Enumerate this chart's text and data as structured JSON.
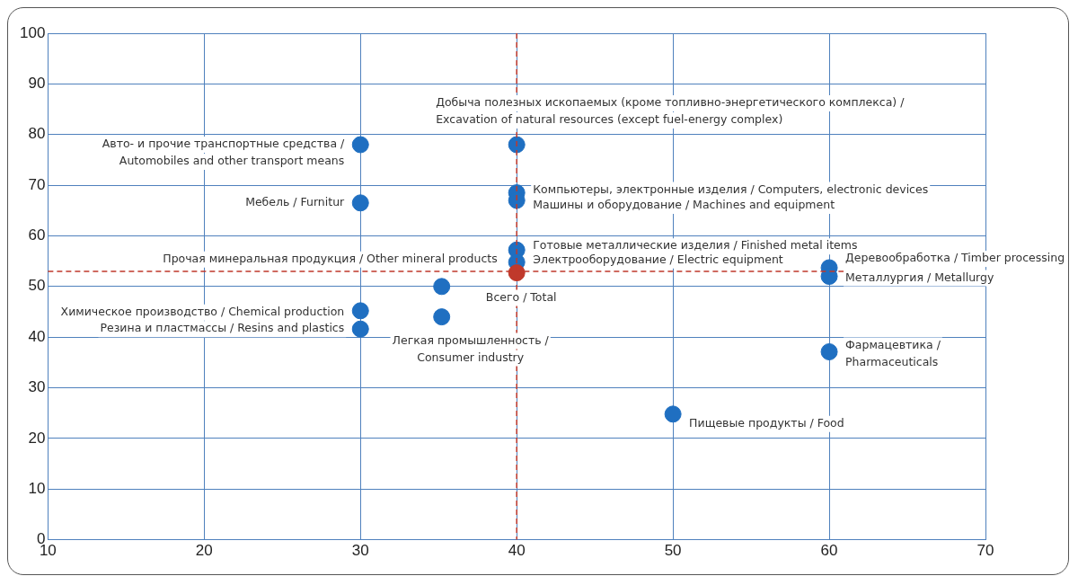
{
  "chart_data": {
    "type": "scatter",
    "x": [
      30,
      30,
      30,
      30,
      35.2,
      35.2,
      40,
      40,
      40,
      40,
      40,
      40,
      50,
      60,
      60,
      60
    ],
    "series": [
      {
        "values": [
          78,
          66.5,
          45.2,
          41.6,
          50,
          44,
          78,
          68.5,
          67,
          57.2,
          54.8,
          52.7,
          24.8,
          53.7,
          52,
          37.1
        ],
        "colors": [
          "#1f6fc1",
          "#1f6fc1",
          "#1f6fc1",
          "#1f6fc1",
          "#1f6fc1",
          "#1f6fc1",
          "#1f6fc1",
          "#1f6fc1",
          "#1f6fc1",
          "#1f6fc1",
          "#1f6fc1",
          "#c0392b",
          "#1f6fc1",
          "#1f6fc1",
          "#1f6fc1",
          "#1f6fc1"
        ]
      }
    ],
    "xlim": [
      10,
      70
    ],
    "xticks": [
      10,
      20,
      30,
      40,
      50,
      60,
      70
    ],
    "ylim": [
      0,
      100
    ],
    "yticks": [
      0,
      10,
      20,
      30,
      40,
      50,
      60,
      70,
      80,
      90,
      100
    ],
    "grid": true,
    "legend": false,
    "marker": "circle",
    "ref_lines": [
      {
        "axis": "x",
        "value": 40,
        "color": "#c0392b",
        "line_style": "dashed"
      },
      {
        "axis": "y",
        "value": 53,
        "color": "#c0392b",
        "line_style": "dashed"
      }
    ],
    "annotations": [
      {
        "text": "Авто- и прочие транспортные средства /\nAutomobiles and other transport means",
        "x": 30,
        "y": 78
      },
      {
        "text": "Мебель / Furnitur",
        "x": 30,
        "y": 66.5
      },
      {
        "text": "Химическое производство / Chemical production",
        "x": 30,
        "y": 45.2
      },
      {
        "text": "Резина и пластмассы / Resins and plastics",
        "x": 30,
        "y": 41.6
      },
      {
        "text": "Прочая минеральная продукция / Other mineral products",
        "x": 35.2,
        "y": 50
      },
      {
        "text": "Легкая промышленность /\nConsumer industry",
        "x": 35.2,
        "y": 44
      },
      {
        "text": "Добыча полезных ископаемых (кроме топливно-энергетического комплекса) /\nExcavation of natural resources (except fuel-energy complex)",
        "x": 40,
        "y": 78
      },
      {
        "text": "Компьютеры, электронные изделия / Computers, electronic devices",
        "x": 40,
        "y": 68.5
      },
      {
        "text": "Машины и оборудование / Machines and equipment",
        "x": 40,
        "y": 67
      },
      {
        "text": "Готовые металлические изделия / Finished metal items",
        "x": 40,
        "y": 57.2
      },
      {
        "text": "Электрооборудование / Electric equipment",
        "x": 40,
        "y": 54.8
      },
      {
        "text": "Всего / Total",
        "x": 40,
        "y": 52.7
      },
      {
        "text": "Пищевые продукты / Food",
        "x": 50,
        "y": 24.8
      },
      {
        "text": "Деревообработка / Timber processing",
        "x": 60,
        "y": 53.7
      },
      {
        "text": "Металлургия / Metallurgy",
        "x": 60,
        "y": 52
      },
      {
        "text": "Фармацевтика /\nPharmaceuticals",
        "x": 60,
        "y": 37.1
      }
    ]
  }
}
